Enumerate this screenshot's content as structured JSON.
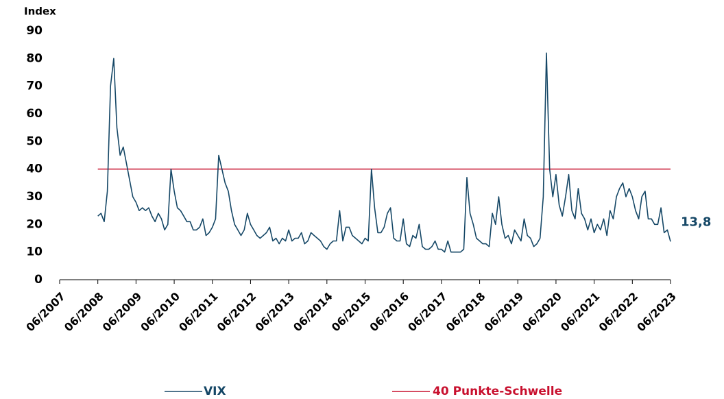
{
  "chart_data": {
    "type": "line",
    "y_label": "Index",
    "x": [
      "06/2008",
      "07/2008",
      "08/2008",
      "09/2008",
      "10/2008",
      "11/2008",
      "12/2008",
      "01/2009",
      "02/2009",
      "03/2009",
      "04/2009",
      "05/2009",
      "06/2009",
      "07/2009",
      "08/2009",
      "09/2009",
      "10/2009",
      "11/2009",
      "12/2009",
      "01/2010",
      "02/2010",
      "03/2010",
      "04/2010",
      "05/2010",
      "06/2010",
      "07/2010",
      "08/2010",
      "09/2010",
      "10/2010",
      "11/2010",
      "12/2010",
      "01/2011",
      "02/2011",
      "03/2011",
      "04/2011",
      "05/2011",
      "06/2011",
      "07/2011",
      "08/2011",
      "09/2011",
      "10/2011",
      "11/2011",
      "12/2011",
      "01/2012",
      "02/2012",
      "03/2012",
      "04/2012",
      "05/2012",
      "06/2012",
      "07/2012",
      "08/2012",
      "09/2012",
      "10/2012",
      "11/2012",
      "12/2012",
      "01/2013",
      "02/2013",
      "03/2013",
      "04/2013",
      "05/2013",
      "06/2013",
      "07/2013",
      "08/2013",
      "09/2013",
      "10/2013",
      "11/2013",
      "12/2013",
      "01/2014",
      "02/2014",
      "03/2014",
      "04/2014",
      "05/2014",
      "06/2014",
      "07/2014",
      "08/2014",
      "09/2014",
      "10/2014",
      "11/2014",
      "12/2014",
      "01/2015",
      "02/2015",
      "03/2015",
      "04/2015",
      "05/2015",
      "06/2015",
      "07/2015",
      "08/2015",
      "09/2015",
      "10/2015",
      "11/2015",
      "12/2015",
      "01/2016",
      "02/2016",
      "03/2016",
      "04/2016",
      "05/2016",
      "06/2016",
      "07/2016",
      "08/2016",
      "09/2016",
      "10/2016",
      "11/2016",
      "12/2016",
      "01/2017",
      "02/2017",
      "03/2017",
      "04/2017",
      "05/2017",
      "06/2017",
      "07/2017",
      "08/2017",
      "09/2017",
      "10/2017",
      "11/2017",
      "12/2017",
      "01/2018",
      "02/2018",
      "03/2018",
      "04/2018",
      "05/2018",
      "06/2018",
      "07/2018",
      "08/2018",
      "09/2018",
      "10/2018",
      "11/2018",
      "12/2018",
      "01/2019",
      "02/2019",
      "03/2019",
      "04/2019",
      "05/2019",
      "06/2019",
      "07/2019",
      "08/2019",
      "09/2019",
      "10/2019",
      "11/2019",
      "12/2019",
      "01/2020",
      "02/2020",
      "03/2020",
      "04/2020",
      "05/2020",
      "06/2020",
      "07/2020",
      "08/2020",
      "09/2020",
      "10/2020",
      "11/2020",
      "12/2020",
      "01/2021",
      "02/2021",
      "03/2021",
      "04/2021",
      "05/2021",
      "06/2021",
      "07/2021",
      "08/2021",
      "09/2021",
      "10/2021",
      "11/2021",
      "12/2021",
      "01/2022",
      "02/2022",
      "03/2022",
      "04/2022",
      "05/2022",
      "06/2022",
      "07/2022",
      "08/2022",
      "09/2022",
      "10/2022",
      "11/2022",
      "12/2022",
      "01/2023",
      "02/2023",
      "03/2023",
      "04/2023",
      "05/2023",
      "06/2023"
    ],
    "series": [
      {
        "name": "VIX",
        "color": "#154766",
        "values": [
          23,
          24,
          21,
          32,
          70,
          80,
          55,
          45,
          48,
          42,
          36,
          30,
          28,
          25,
          26,
          25,
          26,
          23,
          21,
          24,
          22,
          18,
          20,
          40,
          32,
          26,
          25,
          23,
          21,
          21,
          18,
          18,
          19,
          22,
          16,
          17,
          19,
          22,
          45,
          40,
          35,
          32,
          25,
          20,
          18,
          16,
          18,
          24,
          20,
          18,
          16,
          15,
          16,
          17,
          19,
          14,
          15,
          13,
          15,
          14,
          18,
          14,
          15,
          15,
          17,
          13,
          14,
          17,
          16,
          15,
          14,
          12,
          11,
          13,
          14,
          14,
          25,
          14,
          19,
          19,
          16,
          15,
          14,
          13,
          15,
          14,
          40,
          26,
          17,
          17,
          19,
          24,
          26,
          15,
          14,
          14,
          22,
          13,
          12,
          16,
          15,
          20,
          12,
          11,
          11,
          12,
          14,
          11,
          11,
          10,
          14,
          10,
          10,
          10,
          10,
          11,
          37,
          24,
          20,
          15,
          14,
          13,
          13,
          12,
          24,
          20,
          30,
          20,
          15,
          16,
          13,
          18,
          16,
          14,
          22,
          16,
          15,
          12,
          13,
          15,
          30,
          82,
          40,
          30,
          38,
          27,
          23,
          30,
          38,
          25,
          22,
          33,
          24,
          22,
          18,
          22,
          17,
          20,
          18,
          22,
          16,
          25,
          22,
          30,
          33,
          35,
          30,
          33,
          30,
          25,
          22,
          30,
          32,
          22,
          22,
          20,
          20,
          26,
          17,
          18,
          13.8
        ]
      }
    ],
    "threshold": {
      "name": "40 Punkte-Schwelle",
      "value": 40,
      "color": "#c8102e"
    },
    "annotations": [
      {
        "text": "13,8"
      }
    ],
    "xlim": [
      "06/2007",
      "06/2023"
    ],
    "xticks": [
      "06/2007",
      "06/2008",
      "06/2009",
      "06/2010",
      "06/2011",
      "06/2012",
      "06/2013",
      "06/2014",
      "06/2015",
      "06/2016",
      "06/2017",
      "06/2018",
      "06/2019",
      "06/2020",
      "06/2021",
      "06/2022",
      "06/2023"
    ],
    "ylim": [
      0,
      90
    ],
    "yticks": [
      0,
      10,
      20,
      30,
      40,
      50,
      60,
      70,
      80,
      90
    ],
    "grid": false
  }
}
